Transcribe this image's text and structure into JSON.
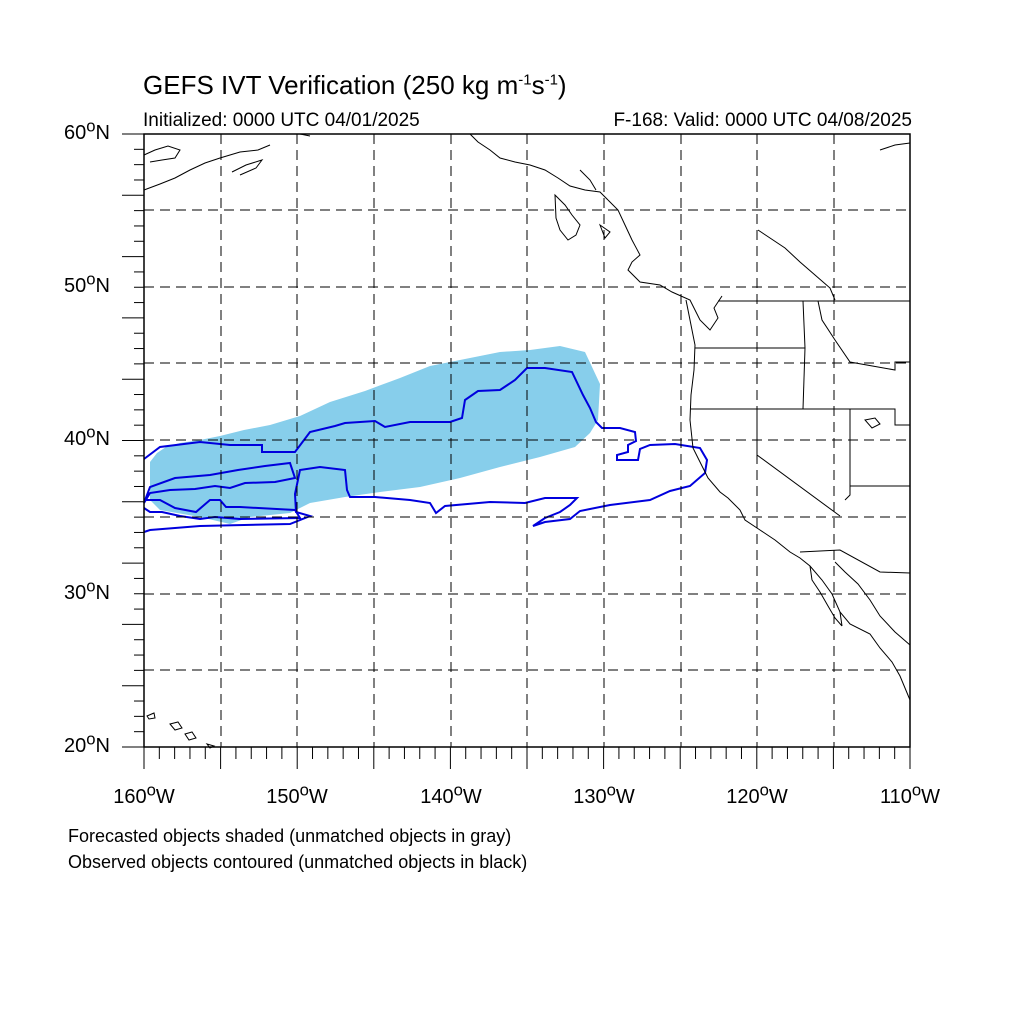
{
  "title": {
    "main": "GEFS IVT Verification (250 kg m",
    "unit_sup1": "-1",
    "unit_mid": "s",
    "unit_sup2": "-1",
    "unit_end": ")"
  },
  "subtitle_left": "Initialized: 0000 UTC 04/01/2025",
  "subtitle_right": "F-168: Valid: 0000 UTC 04/08/2025",
  "lat_labels": [
    {
      "id": "60",
      "num": "60",
      "deg": "o",
      "hem": "N"
    },
    {
      "id": "50",
      "num": "50",
      "deg": "o",
      "hem": "N"
    },
    {
      "id": "40",
      "num": "40",
      "deg": "o",
      "hem": "N"
    },
    {
      "id": "30",
      "num": "30",
      "deg": "o",
      "hem": "N"
    },
    {
      "id": "20",
      "num": "20",
      "deg": "o",
      "hem": "N"
    }
  ],
  "lon_labels": [
    {
      "id": "160w",
      "num": "160",
      "deg": "o",
      "hem": "W"
    },
    {
      "id": "150w",
      "num": "150",
      "deg": "o",
      "hem": "W"
    },
    {
      "id": "140w",
      "num": "140",
      "deg": "o",
      "hem": "W"
    },
    {
      "id": "130w",
      "num": "130",
      "deg": "o",
      "hem": "W"
    },
    {
      "id": "120w",
      "num": "120",
      "deg": "o",
      "hem": "W"
    },
    {
      "id": "110w",
      "num": "110",
      "deg": "o",
      "hem": "W"
    }
  ],
  "captions": {
    "forecast": "Forecasted objects shaded (unmatched objects in gray)",
    "observed": "Observed objects contoured (unmatched objects in black)"
  },
  "colors": {
    "forecast_fill": "#87ceeb",
    "observed_contour": "#0000dd",
    "coast": "#000000",
    "grid": "#000000"
  }
}
